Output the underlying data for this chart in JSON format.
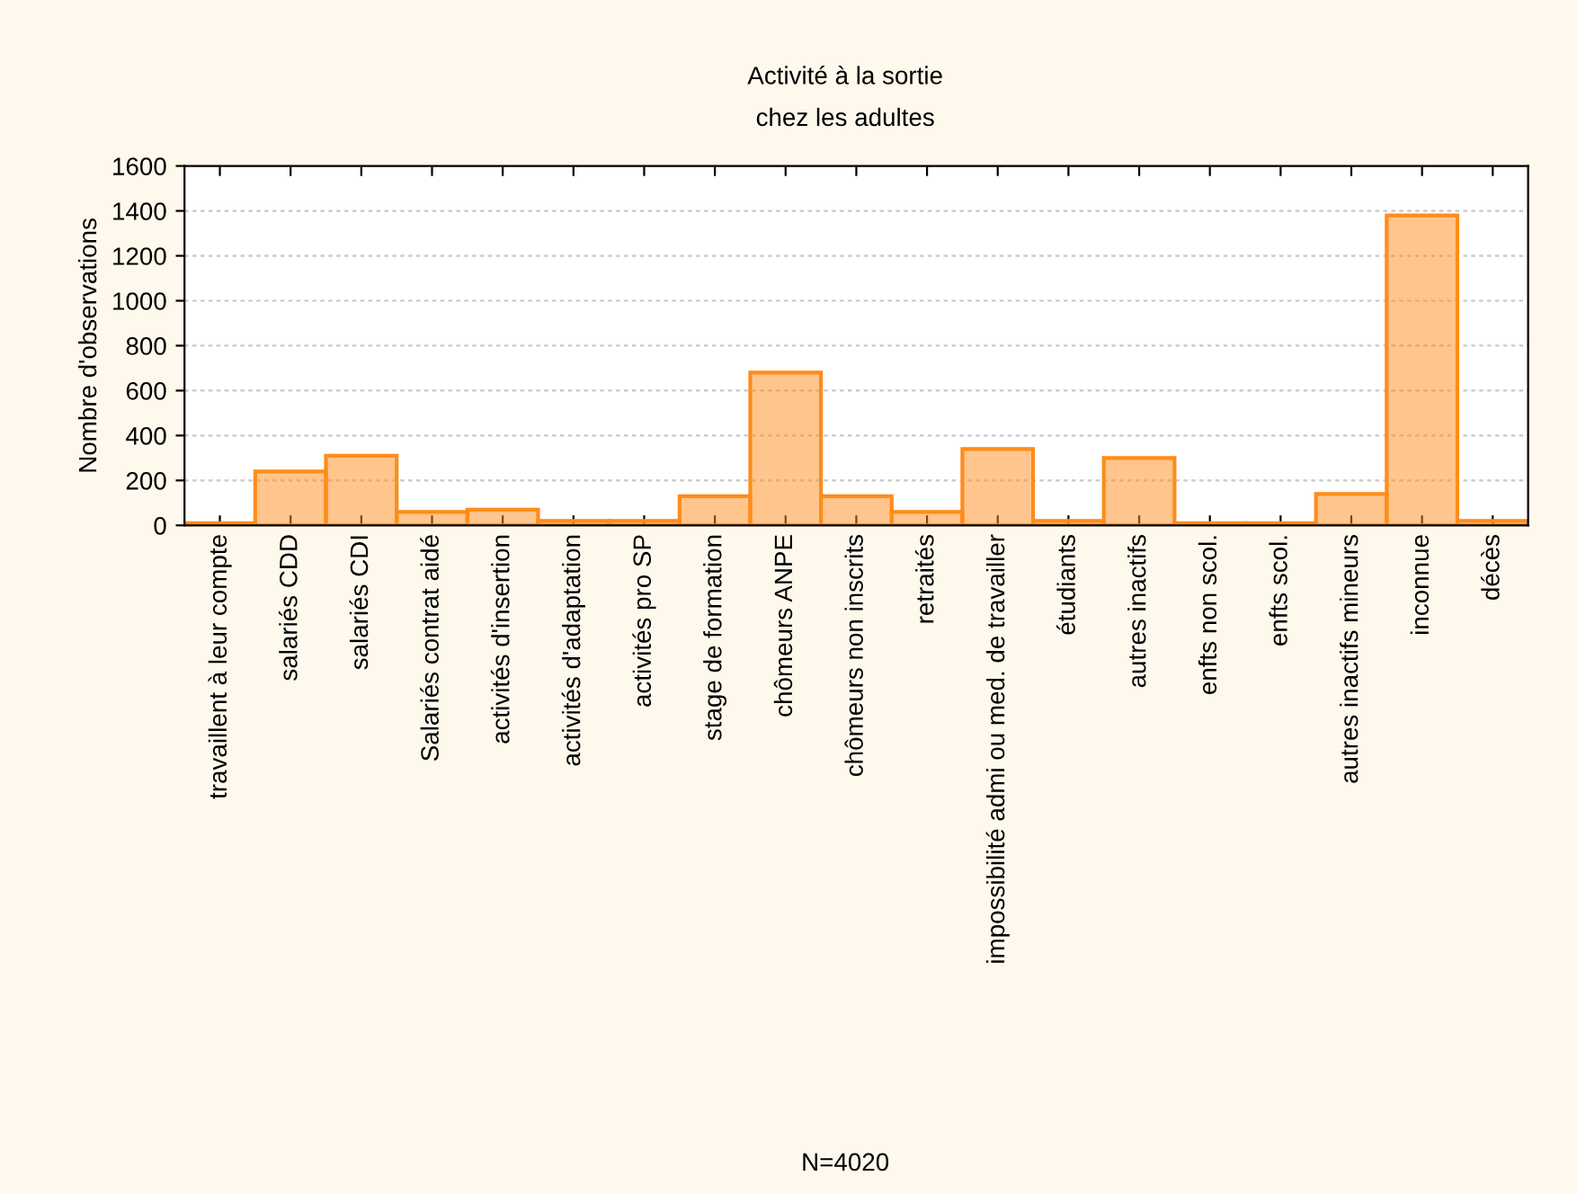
{
  "chart_data": {
    "type": "bar",
    "title": "Activité à la sortie",
    "subtitle": "chez les adultes",
    "ylabel": "Nombre d'observations",
    "annotations": [
      "N=4020"
    ],
    "categories": [
      "travaillent à leur compte",
      "salariés CDD",
      "salariés CDI",
      "Salariés contrat aidé",
      "activités d'insertion",
      "activités d'adaptation",
      "activités pro SP",
      "stage de formation",
      "chômeurs ANPE",
      "chômeurs non inscrits",
      "retraités",
      "impossibilité admi ou med. de travailler",
      "étudiants",
      "autres inactifs",
      "enfts non scol.",
      "enfts scol.",
      "autres inactifs mineurs",
      "inconnue",
      "décès"
    ],
    "values": [
      10,
      240,
      310,
      60,
      70,
      20,
      20,
      130,
      680,
      130,
      60,
      340,
      20,
      300,
      10,
      10,
      140,
      1380,
      20
    ],
    "color": "#ff8c1a",
    "ylim": [
      0,
      1600
    ],
    "yticks": [
      0,
      200,
      400,
      600,
      800,
      1000,
      1200,
      1400,
      1600
    ],
    "grid": "y"
  }
}
